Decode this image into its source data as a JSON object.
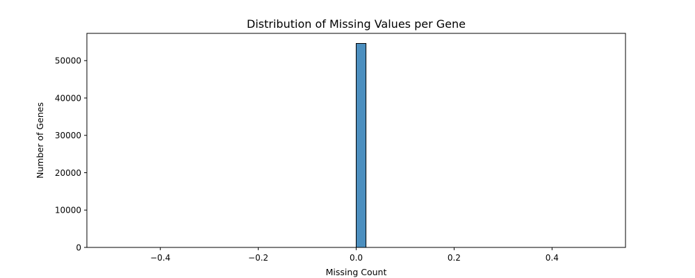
{
  "chart_data": {
    "type": "bar",
    "title": "Distribution of Missing Values per Gene",
    "xlabel": "Missing Count",
    "ylabel": "Number of Genes",
    "xlim": [
      -0.55,
      0.55
    ],
    "ylim": [
      0,
      57300
    ],
    "x_ticks": [
      -0.4,
      -0.2,
      0.0,
      0.2,
      0.4
    ],
    "x_tick_labels": [
      "−0.4",
      "−0.2",
      "0.0",
      "0.2",
      "0.4"
    ],
    "y_ticks": [
      0,
      10000,
      20000,
      30000,
      40000,
      50000
    ],
    "y_tick_labels": [
      "0",
      "10000",
      "20000",
      "30000",
      "40000",
      "50000"
    ],
    "bins": {
      "start": -0.5,
      "end": 0.5,
      "count": 50
    },
    "bars": [
      {
        "x_start": 0.0,
        "x_end": 0.02,
        "value": 54600
      }
    ],
    "bar_color": "#4c8fbf",
    "edge_color": "#000000",
    "grid": false
  }
}
